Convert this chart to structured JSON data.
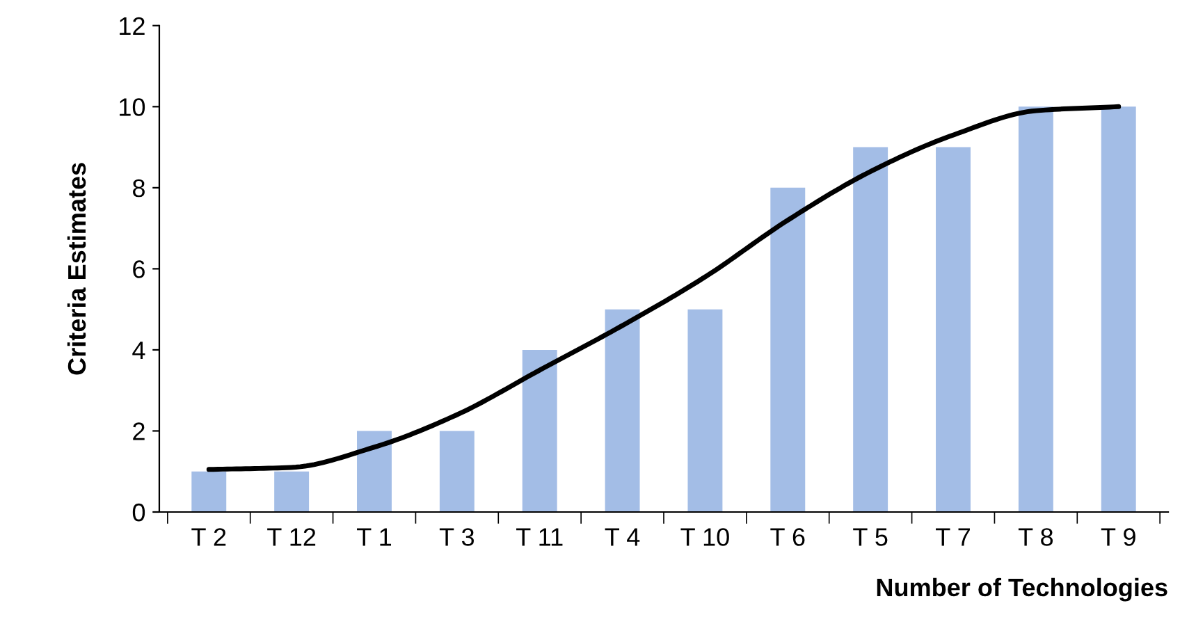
{
  "chart_data": {
    "type": "bar",
    "xlabel": "Number of Technologies",
    "ylabel": "Criteria Estimates",
    "categories": [
      "T 2",
      "T 12",
      "T 1",
      "T 3",
      "T 11",
      "T 4",
      "T 10",
      "T 6",
      "T 5",
      "T 7",
      "T 8",
      "T 9"
    ],
    "series": [
      {
        "color": "#a3bde6",
        "values": [
          1,
          1,
          2,
          2,
          4,
          5,
          5,
          8,
          9,
          9,
          10,
          10
        ]
      },
      {
        "type": "line",
        "color": "#000000",
        "values": [
          1.05,
          1.1,
          1.6,
          2.4,
          3.5,
          4.6,
          5.8,
          7.2,
          8.4,
          9.3,
          9.9,
          10.0
        ]
      }
    ],
    "ylim": [
      0,
      12
    ],
    "yticks": [
      0,
      2,
      4,
      6,
      8,
      10,
      12
    ],
    "grid": false
  }
}
